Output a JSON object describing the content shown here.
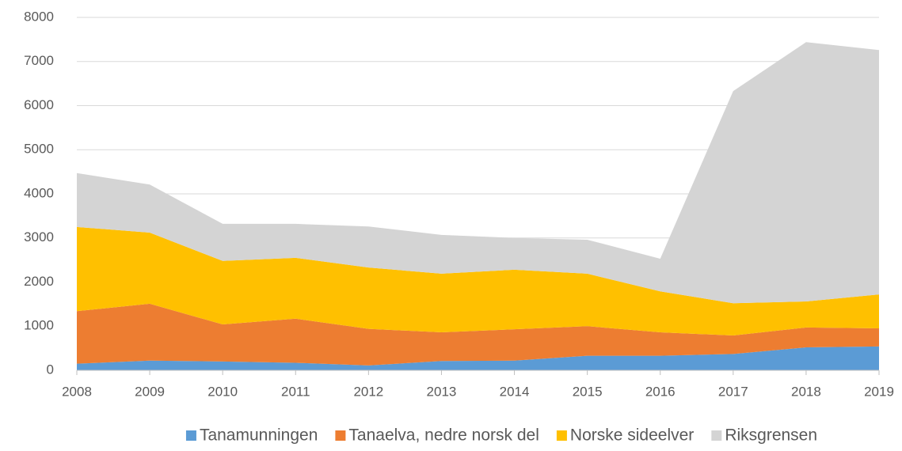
{
  "chart_data": {
    "type": "stacked_area",
    "categories": [
      "2008",
      "2009",
      "2010",
      "2011",
      "2012",
      "2013",
      "2014",
      "2015",
      "2016",
      "2017",
      "2018",
      "2019"
    ],
    "series": [
      {
        "name": "Tanamunningen",
        "color": "#5b9bd5",
        "values": [
          150,
          220,
          200,
          170,
          110,
          210,
          220,
          330,
          330,
          370,
          520,
          540
        ]
      },
      {
        "name": "Tanaelva, nedre norsk del",
        "color": "#ed7d31",
        "values": [
          1190,
          1290,
          840,
          1000,
          830,
          650,
          710,
          670,
          530,
          420,
          450,
          410
        ]
      },
      {
        "name": "Norske sideelver",
        "color": "#ffc000",
        "values": [
          1910,
          1610,
          1440,
          1380,
          1390,
          1330,
          1350,
          1190,
          930,
          730,
          590,
          770
        ]
      },
      {
        "name": "Riksgrensen",
        "color": "#d4d4d4",
        "values": [
          1220,
          1090,
          840,
          770,
          930,
          880,
          720,
          770,
          740,
          4810,
          5880,
          5540
        ]
      }
    ],
    "ylim": [
      0,
      8000
    ],
    "yticks": [
      0,
      1000,
      2000,
      3000,
      4000,
      5000,
      6000,
      7000,
      8000
    ],
    "grid": true,
    "legend": "bottom"
  }
}
